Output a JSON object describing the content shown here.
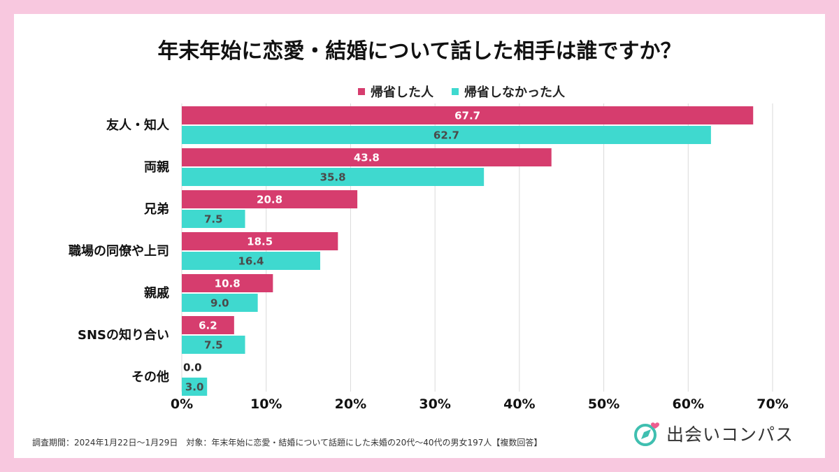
{
  "colors": {
    "background": "#f8c8df",
    "returned": "#d63d6e",
    "not_returned": "#3fd9cf",
    "grid": "#d9d9d9",
    "label_light": "#ffffff",
    "label_dark": "#4a4a4a",
    "logo_accent": "#3fbfb0",
    "logo_heart": "#ee5d8f"
  },
  "footnote": "調査期間：2024年1月22日～1月29日　対象：年末年始に恋愛・結婚について話題にした未婚の20代～40代の男女197人【複数回答】",
  "logo": {
    "text": "出会いコンパス",
    "icon": "compass-heart-icon"
  },
  "chart_data": {
    "type": "bar",
    "orientation": "horizontal",
    "title": "年末年始に恋愛・結婚について話した相手は誰ですか？",
    "categories": [
      "友人・知人",
      "両親",
      "兄弟",
      "職場の同僚や上司",
      "親戚",
      "SNSの知り合い",
      "その他"
    ],
    "series": [
      {
        "name": "帰省した人",
        "color": "#d63d6e",
        "values": [
          67.7,
          43.8,
          20.8,
          18.5,
          10.8,
          6.2,
          0.0
        ]
      },
      {
        "name": "帰省しなかった人",
        "color": "#3fd9cf",
        "values": [
          62.7,
          35.8,
          7.5,
          16.4,
          9.0,
          7.5,
          3.0
        ]
      }
    ],
    "xlim": [
      0,
      70
    ],
    "xticks": [
      0,
      10,
      20,
      30,
      40,
      50,
      60,
      70
    ],
    "tick_suffix": "%",
    "grid": true,
    "legend_position": "top"
  }
}
